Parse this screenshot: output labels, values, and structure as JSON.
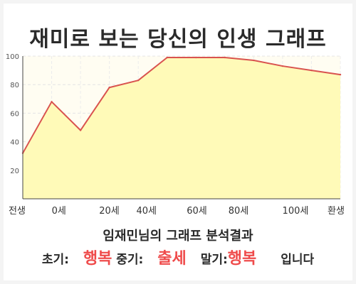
{
  "title": "재미로 보는 당신의 인생 그래프",
  "chart_data": {
    "type": "area",
    "x": [
      0,
      1,
      2,
      3,
      4,
      5,
      6,
      7,
      8,
      9,
      10,
      11
    ],
    "values": [
      32,
      68,
      48,
      78,
      83,
      99,
      99,
      99,
      97,
      93,
      90,
      87
    ],
    "x_tick_labels": [
      "전생",
      "0세",
      "20세",
      "40세",
      "60세",
      "80세",
      "100세",
      "환생"
    ],
    "x_tick_positions": [
      0,
      1.65,
      3.95,
      5.65,
      7.95,
      9.85,
      12.45,
      14.5
    ],
    "y_tick_labels": [
      "20",
      "40",
      "60",
      "80",
      "100"
    ],
    "ylim": [
      0,
      100
    ],
    "grid": true,
    "line_color": "#d9534f",
    "fill_color": "#fffab8"
  },
  "result": {
    "heading": "임재민님의 그래프 분석결과",
    "early_label": "초기:",
    "early_value": "행복",
    "mid_label": "중기:",
    "mid_value": "출세",
    "late_label": "말기:",
    "late_value": "행복",
    "suffix": "입니다"
  },
  "colors": {
    "highlight": "#ef4b4b",
    "text": "#2a2a2a"
  }
}
